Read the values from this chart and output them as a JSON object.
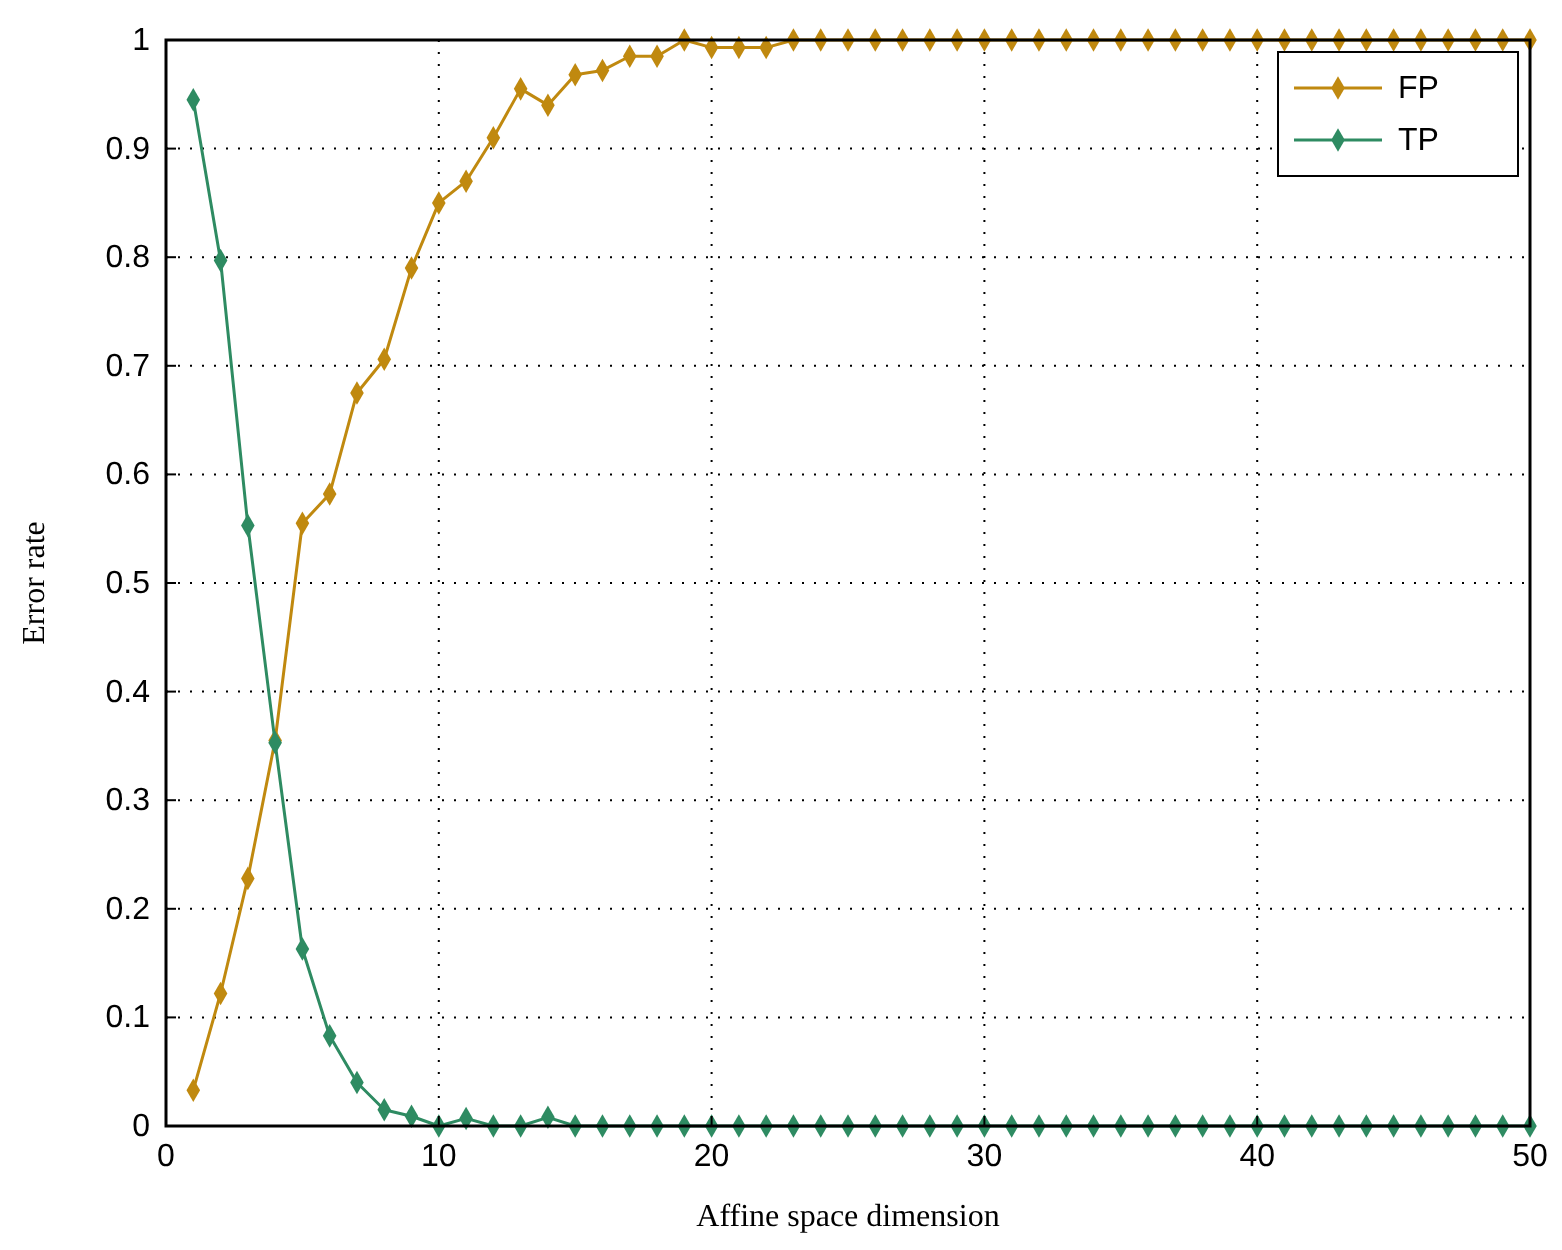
{
  "chart_data": {
    "type": "line",
    "xlabel": "Affine space dimension",
    "ylabel": "Error rate",
    "x": [
      1,
      2,
      3,
      4,
      5,
      6,
      7,
      8,
      9,
      10,
      11,
      12,
      13,
      14,
      15,
      16,
      17,
      18,
      19,
      20,
      21,
      22,
      23,
      24,
      25,
      26,
      27,
      28,
      29,
      30,
      31,
      32,
      33,
      34,
      35,
      36,
      37,
      38,
      39,
      40,
      41,
      42,
      43,
      44,
      45,
      46,
      47,
      48,
      49,
      50
    ],
    "series": [
      {
        "name": "FP",
        "color": "#c0890f",
        "values": [
          0.033,
          0.122,
          0.228,
          0.355,
          0.555,
          0.582,
          0.675,
          0.706,
          0.79,
          0.85,
          0.87,
          0.91,
          0.955,
          0.94,
          0.968,
          0.972,
          0.985,
          0.985,
          1,
          0.993,
          0.993,
          0.993,
          1,
          1,
          1,
          1,
          1,
          1,
          1,
          1,
          1,
          1,
          1,
          1,
          1,
          1,
          1,
          1,
          1,
          1,
          1,
          1,
          1,
          1,
          1,
          1,
          1,
          1,
          1,
          1
        ]
      },
      {
        "name": "TP",
        "color": "#2e8b62",
        "values": [
          0.945,
          0.797,
          0.553,
          0.353,
          0.163,
          0.083,
          0.04,
          0.015,
          0.009,
          0,
          0.007,
          0,
          0,
          0.008,
          0,
          0,
          0,
          0,
          0,
          0,
          0,
          0,
          0,
          0,
          0,
          0,
          0,
          0,
          0,
          0,
          0,
          0,
          0,
          0,
          0,
          0,
          0,
          0,
          0,
          0,
          0,
          0,
          0,
          0,
          0,
          0,
          0,
          0,
          0,
          0
        ]
      }
    ],
    "xlim": [
      0,
      50
    ],
    "xticks": [
      0,
      10,
      20,
      30,
      40,
      50
    ],
    "ylim": [
      0,
      1
    ],
    "yticks": [
      0,
      0.1,
      0.2,
      0.3,
      0.4,
      0.5,
      0.6,
      0.7,
      0.8,
      0.9,
      1
    ],
    "grid": true,
    "legend": "top right",
    "marker": "diamond",
    "line_style": "solid"
  }
}
